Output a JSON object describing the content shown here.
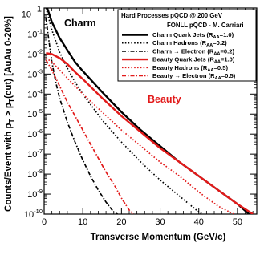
{
  "chart_data": {
    "type": "line",
    "title": "",
    "xlabel": "Transverse Momentum (GeV/c)",
    "ylabel": "Counts/Event with p_T > p_T(cut) [AuAu 0-20%]",
    "xlim": [
      0,
      55
    ],
    "ylim_log10": [
      -10,
      0.3
    ],
    "log_y": true,
    "grid": false,
    "x_ticks": [
      "0",
      "10",
      "20",
      "30",
      "40",
      "50"
    ],
    "y_ticks": [
      "10",
      "10",
      "10",
      "10",
      "10",
      "10",
      "10",
      "10",
      "10",
      "10",
      "10",
      "1"
    ],
    "y_tick_exponents": [
      "-10",
      "-9",
      "-8",
      "-7",
      "-6",
      "-5",
      "-4",
      "-3",
      "-2",
      "-1",
      "",
      ""
    ],
    "legend": {
      "placement": "top-right",
      "title": "Hard Processes pQCD @ 200 GeV",
      "subtitle": "FONLL pQCD - M. Carriari",
      "entries": [
        {
          "pre": "Charm Quark Jets (R",
          "sub": "AA",
          "post": "=1.0)",
          "color": "#000000",
          "style": "solid"
        },
        {
          "pre": "Charm Hadrons (R",
          "sub": "AA",
          "post": "=0.2)",
          "color": "#000000",
          "style": "dotted"
        },
        {
          "pre": "Charm → Electron (R",
          "sub": "AA",
          "post": "=0.2)",
          "color": "#000000",
          "style": "dashdot"
        },
        {
          "pre": "Beauty Quark Jets (R",
          "sub": "AA",
          "post": "=1.0)",
          "color": "#e21a1a",
          "style": "solid"
        },
        {
          "pre": "Beauty Hadrons (R",
          "sub": "AA",
          "post": "=0.5)",
          "color": "#e21a1a",
          "style": "dotted"
        },
        {
          "pre": "Beauty → Electron (R",
          "sub": "AA",
          "post": "=0.5)",
          "color": "#e21a1a",
          "style": "dashdot"
        }
      ]
    },
    "annotations": [
      {
        "text": "Charm",
        "color": "#000000"
      },
      {
        "text": "Beauty",
        "color": "#e21a1a"
      }
    ],
    "series": [
      {
        "name": "Charm Quark Jets (R_AA=1.0)",
        "color": "#000000",
        "style": "solid",
        "x": [
          0.8,
          2,
          4,
          6,
          8,
          10,
          15,
          20,
          25,
          30,
          35,
          40,
          45,
          50,
          53
        ],
        "log10y": [
          0.3,
          -0.4,
          -1.2,
          -1.8,
          -2.4,
          -2.85,
          -3.9,
          -4.9,
          -5.8,
          -6.6,
          -7.4,
          -8.1,
          -8.8,
          -9.5,
          -10.0
        ]
      },
      {
        "name": "Charm Hadrons (R_AA=0.2)",
        "color": "#000000",
        "style": "dotted",
        "x": [
          0.5,
          2,
          4,
          6,
          8,
          10,
          15,
          20,
          25,
          30,
          35,
          40,
          41
        ],
        "log10y": [
          0.3,
          -0.8,
          -1.9,
          -2.7,
          -3.4,
          -4.0,
          -5.3,
          -6.4,
          -7.4,
          -8.3,
          -9.1,
          -9.9,
          -10.0
        ]
      },
      {
        "name": "Charm → Electron (R_AA=0.2)",
        "color": "#000000",
        "style": "dashdot",
        "x": [
          0.5,
          1,
          2,
          3,
          4,
          6,
          8,
          10,
          12,
          14,
          16,
          18,
          19
        ],
        "log10y": [
          -0.2,
          -1.0,
          -2.4,
          -3.4,
          -4.2,
          -5.4,
          -6.4,
          -7.3,
          -8.1,
          -8.8,
          -9.4,
          -9.9,
          -10.0
        ]
      },
      {
        "name": "Beauty Quark Jets (R_AA=1.0)",
        "color": "#e21a1a",
        "style": "solid",
        "x": [
          0.5,
          2,
          4,
          6,
          8,
          10,
          15,
          20,
          25,
          30,
          35,
          40,
          45,
          50,
          54
        ],
        "log10y": [
          -1.95,
          -2.0,
          -2.2,
          -2.5,
          -2.9,
          -3.25,
          -4.2,
          -5.1,
          -5.9,
          -6.7,
          -7.4,
          -8.1,
          -8.8,
          -9.5,
          -10.0
        ]
      },
      {
        "name": "Beauty Hadrons (R_AA=0.5)",
        "color": "#e21a1a",
        "style": "dotted",
        "x": [
          0.5,
          2,
          4,
          6,
          8,
          10,
          15,
          20,
          25,
          30,
          35,
          40,
          45,
          49
        ],
        "log10y": [
          -2.2,
          -2.4,
          -2.8,
          -3.2,
          -3.6,
          -4.0,
          -4.9,
          -5.8,
          -6.6,
          -7.4,
          -8.1,
          -8.9,
          -9.6,
          -10.0
        ]
      },
      {
        "name": "Beauty → Electron (R_AA=0.5)",
        "color": "#e21a1a",
        "style": "dashdot",
        "x": [
          0.5,
          2,
          4,
          6,
          8,
          10,
          12,
          14,
          16,
          18,
          20,
          22,
          23
        ],
        "log10y": [
          -2.3,
          -2.8,
          -3.6,
          -4.4,
          -5.1,
          -5.8,
          -6.5,
          -7.2,
          -7.9,
          -8.5,
          -9.2,
          -9.8,
          -10.0
        ]
      }
    ]
  }
}
